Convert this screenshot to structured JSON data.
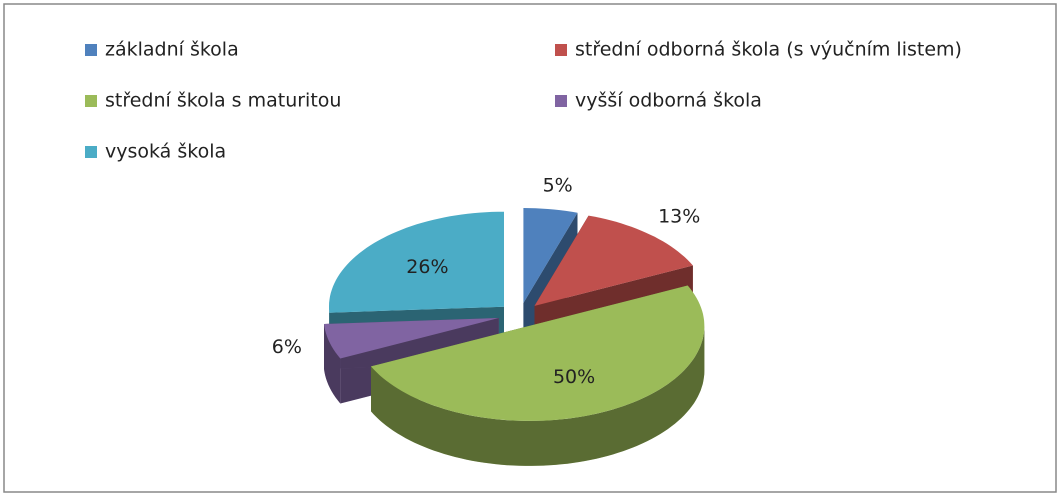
{
  "chart_data": {
    "type": "pie",
    "categories": [
      "základní škola",
      "střední odborná škola (s výučním listem)",
      "střední škola s maturitou",
      "vyšší odborná škola",
      "vysoká škola"
    ],
    "values": [
      5,
      13,
      50,
      6,
      26
    ],
    "value_labels": [
      "5%",
      "13%",
      "50%",
      "6%",
      "26%"
    ],
    "colors": [
      "#4f81bd",
      "#c0504d",
      "#9bbb59",
      "#8064a2",
      "#4bacc6"
    ],
    "legend": "top"
  }
}
